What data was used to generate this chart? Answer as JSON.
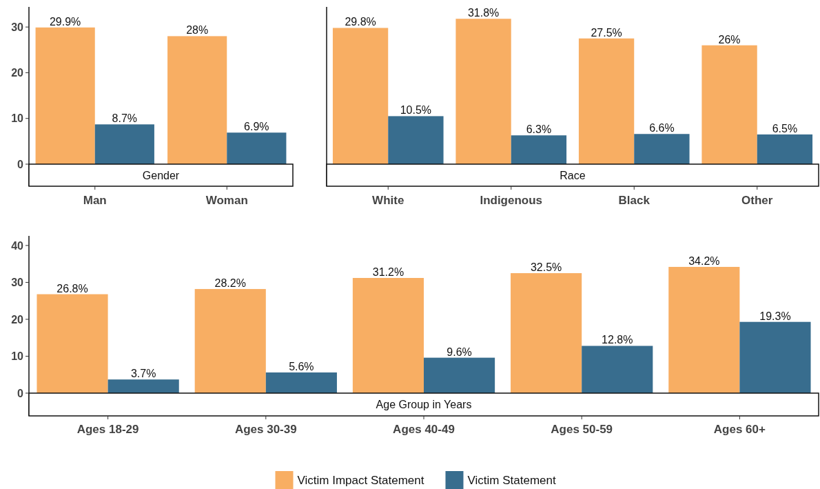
{
  "chart_data": [
    {
      "type": "bar",
      "xlabel": "Gender",
      "categories": [
        "Man",
        "Woman"
      ],
      "ylim": [
        0,
        34.4
      ],
      "yticks": [
        0,
        10,
        20,
        30
      ],
      "grid": false,
      "legend": false,
      "series": [
        {
          "color": "#f8ae63",
          "values": [
            29.9,
            28
          ],
          "value_labels": [
            "29.9%",
            "28%"
          ]
        },
        {
          "color": "#386d8e",
          "values": [
            8.7,
            6.9
          ],
          "value_labels": [
            "8.7%",
            "6.9%"
          ]
        }
      ]
    },
    {
      "type": "bar",
      "xlabel": "Race",
      "categories": [
        "White",
        "Indigenous",
        "Black",
        "Other"
      ],
      "ylim": [
        0,
        34.4
      ],
      "tick_labels": "x",
      "grid": false,
      "legend": false,
      "series": [
        {
          "color": "#f8ae63",
          "values": [
            29.8,
            31.8,
            27.5,
            26
          ],
          "value_labels": [
            "29.8%",
            "31.8%",
            "27.5%",
            "26%"
          ]
        },
        {
          "color": "#386d8e",
          "values": [
            10.5,
            6.3,
            6.6,
            6.5
          ],
          "value_labels": [
            "10.5%",
            "6.3%",
            "6.6%",
            "6.5%"
          ]
        }
      ]
    },
    {
      "type": "bar",
      "xlabel": "Age Group in Years",
      "categories": [
        "Ages 18-29",
        "Ages 30-39",
        "Ages 40-49",
        "Ages 50-59",
        "Ages 60+"
      ],
      "ylim": [
        0,
        42.6
      ],
      "yticks": [
        0,
        10,
        20,
        30,
        40
      ],
      "grid": false,
      "legend": "bottom",
      "series": [
        {
          "name": "Victim Impact Statement",
          "color": "#f8ae63",
          "values": [
            26.8,
            28.2,
            31.2,
            32.5,
            34.2
          ],
          "value_labels": [
            "26.8%",
            "28.2%",
            "31.2%",
            "32.5%",
            "34.2%"
          ]
        },
        {
          "name": "Victim Statement",
          "color": "#386d8e",
          "values": [
            3.7,
            5.6,
            9.6,
            12.8,
            19.3
          ],
          "value_labels": [
            "3.7%",
            "5.6%",
            "9.6%",
            "12.8%",
            "19.3%"
          ]
        }
      ]
    }
  ]
}
